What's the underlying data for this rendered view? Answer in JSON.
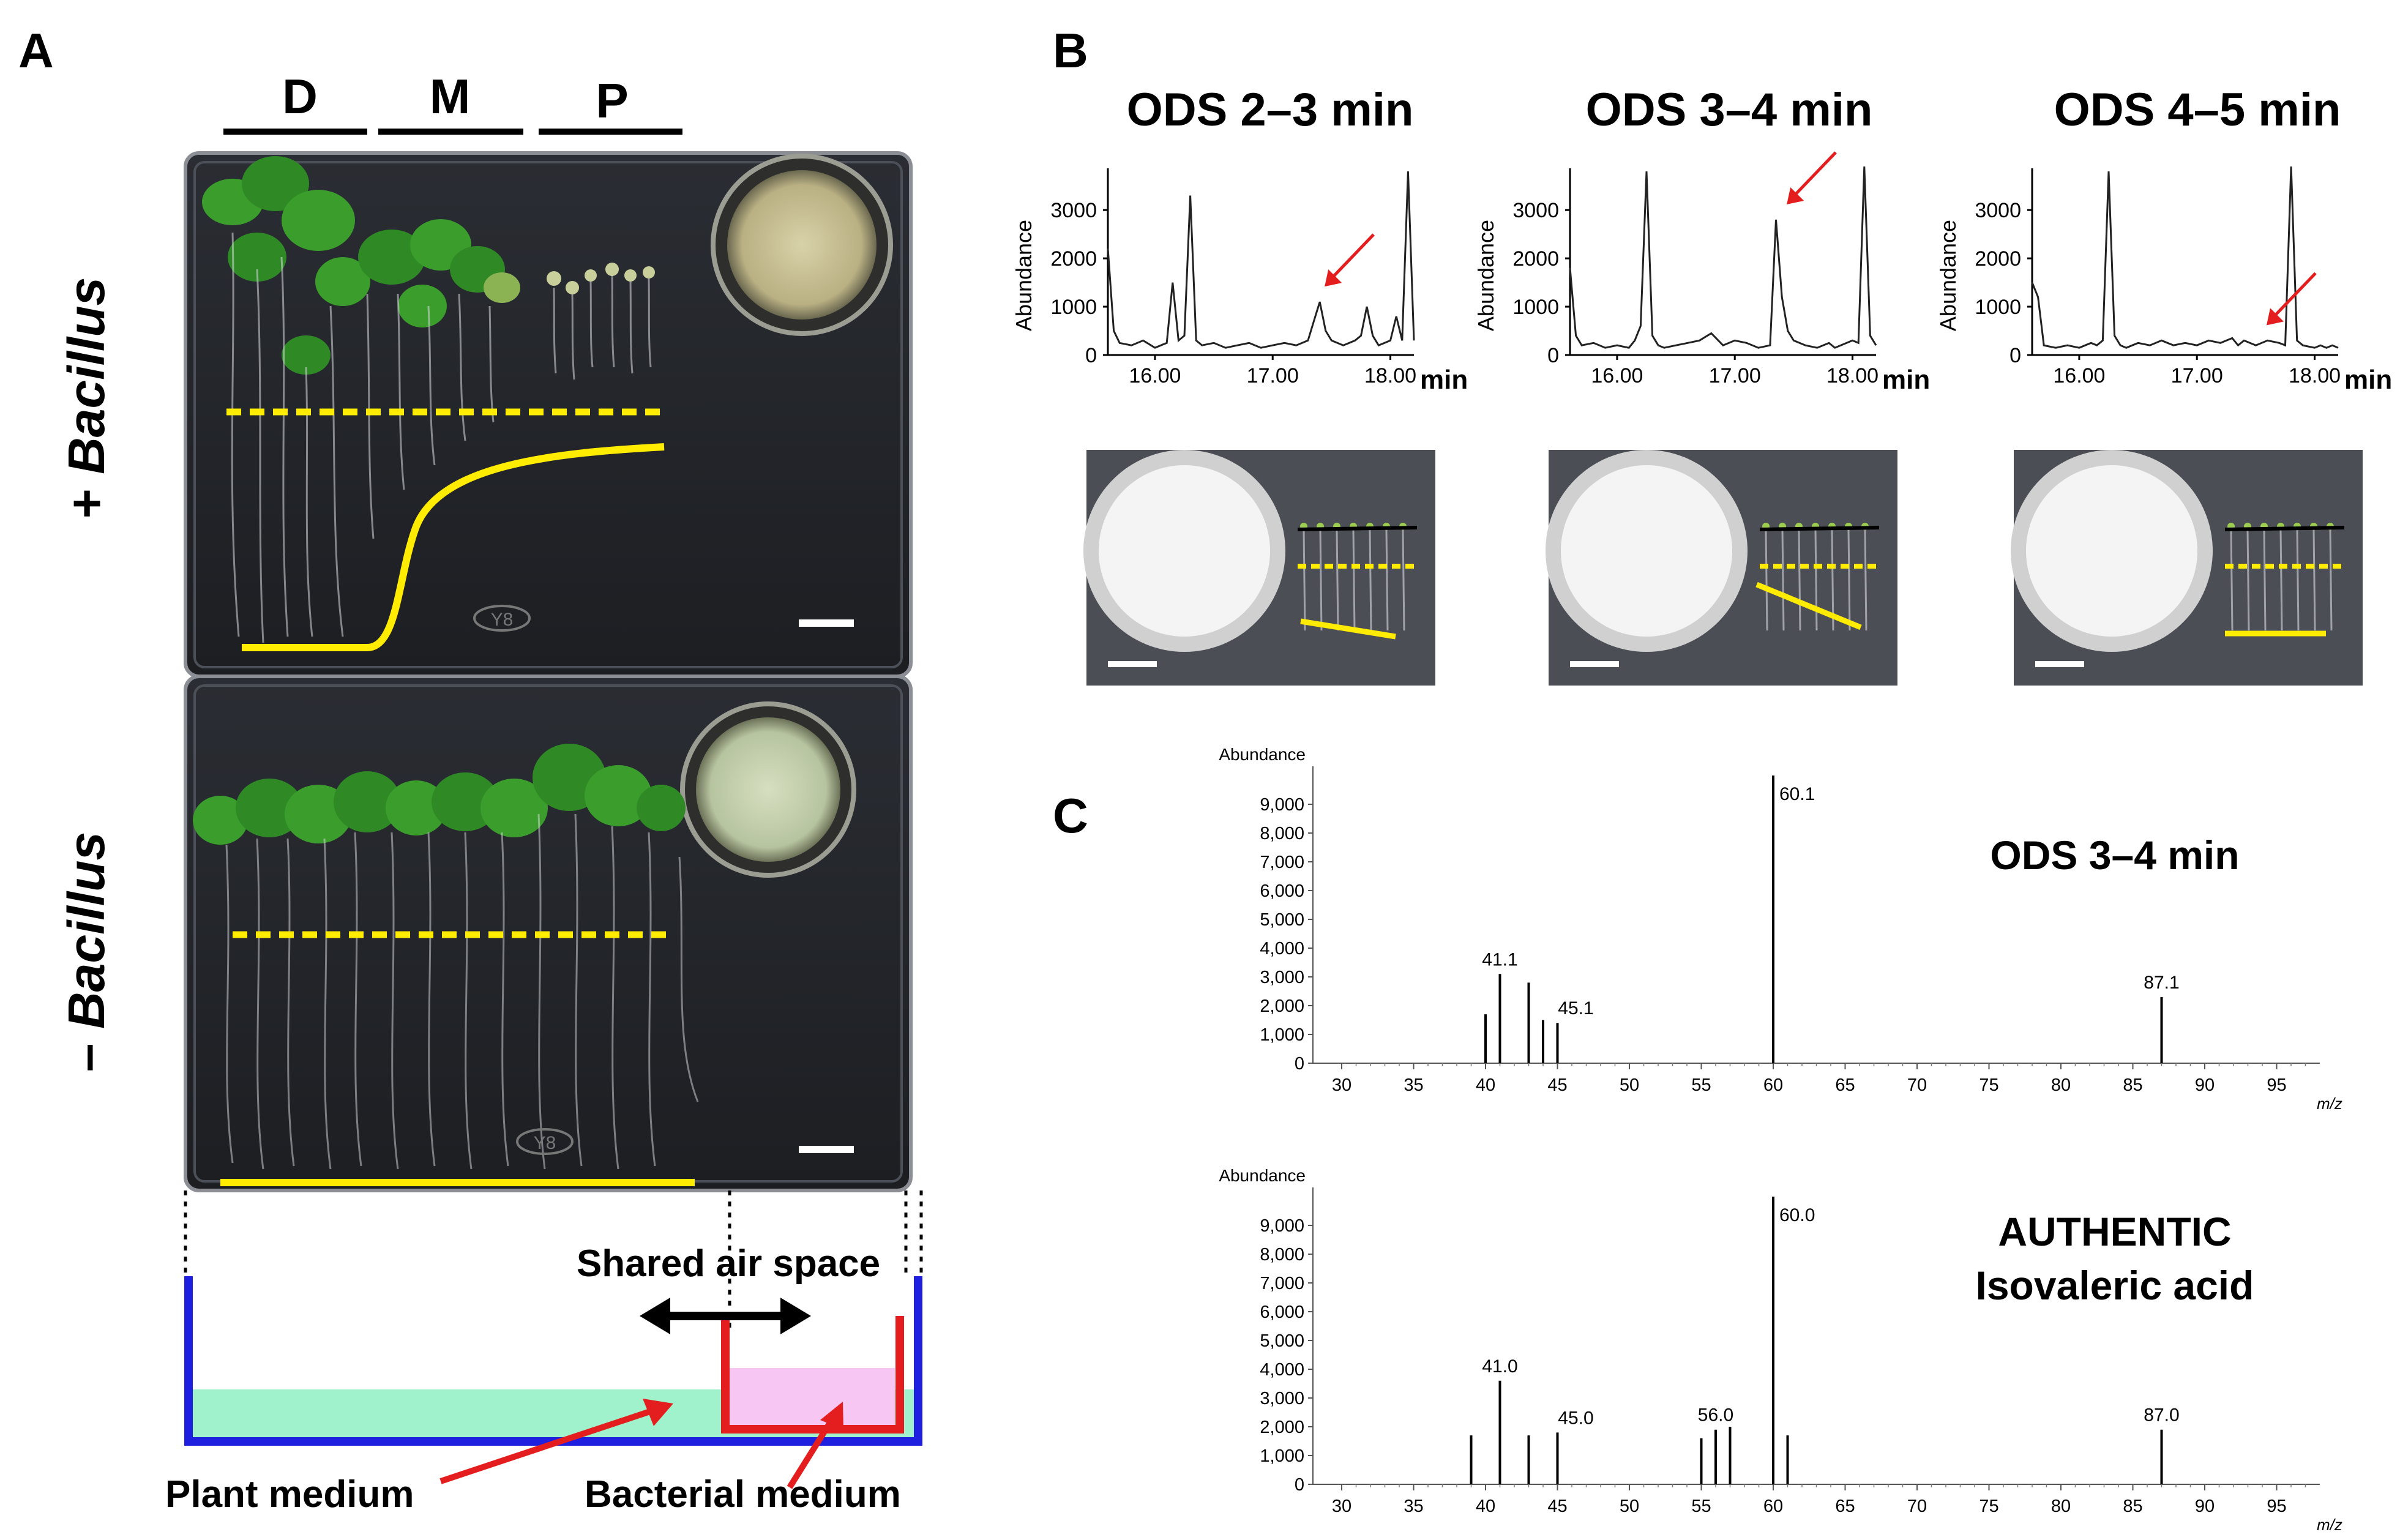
{
  "panel_a": {
    "letter": "A",
    "groups": [
      "D",
      "M",
      "P"
    ],
    "row_top": "+ Bacillus",
    "row_top_sign": "+ ",
    "row_top_word": "Bacillus",
    "row_bottom_sign": "– ",
    "row_bottom_word": "Bacillus",
    "plate_marks": [
      "Y8",
      "Y8"
    ],
    "schematic": {
      "shared_air_space": "Shared air space",
      "plant_medium": "Plant medium",
      "bacterial_medium": "Bacterial medium"
    },
    "colors": {
      "yellow": "#ffec00",
      "blue": "#1f1fe0",
      "red": "#e41e1e",
      "green_medium": "#9ff2cc",
      "pink_medium": "#f7c6f2"
    }
  },
  "panel_b": {
    "letter": "B",
    "chromatograms": [
      {
        "title": "ODS 2–3 min",
        "ylabel": "Abundance",
        "yticks": [
          "3000",
          "2000",
          "1000",
          "0"
        ],
        "xticks": [
          "16.00",
          "17.00",
          "18.00"
        ],
        "xunit": "min"
      },
      {
        "title": "ODS 3–4 min",
        "ylabel": "Abundance",
        "yticks": [
          "3000",
          "2000",
          "1000",
          "0"
        ],
        "xticks": [
          "16.00",
          "17.00",
          "18.00"
        ],
        "xunit": "min"
      },
      {
        "title": "ODS 4–5 min",
        "ylabel": "Abundance",
        "yticks": [
          "3000",
          "2000",
          "1000",
          "0"
        ],
        "xticks": [
          "16.00",
          "17.00",
          "18.00"
        ],
        "xunit": "min"
      }
    ]
  },
  "panel_c": {
    "letter": "C",
    "spectra": [
      {
        "title_lines": [
          "ODS 3–4 min"
        ],
        "ylabel": "Abundance",
        "xlabel": "m/z",
        "peak_labels": [
          "41.1",
          "45.1",
          "60.1",
          "87.1"
        ]
      },
      {
        "title_lines": [
          "AUTHENTIC",
          "Isovaleric acid"
        ],
        "ylabel": "Abundance",
        "xlabel": "m/z",
        "peak_labels": [
          "41.0",
          "45.0",
          "56.0",
          "60.0",
          "87.0"
        ]
      }
    ],
    "yticks": [
      "9,000",
      "8,000",
      "7,000",
      "6,000",
      "5,000",
      "4,000",
      "3,000",
      "2,000",
      "1,000",
      "0"
    ],
    "xticks": [
      "30",
      "35",
      "40",
      "45",
      "50",
      "55",
      "60",
      "65",
      "70",
      "75",
      "80",
      "85",
      "90",
      "95"
    ]
  },
  "chart_data": [
    {
      "type": "line",
      "title": "ODS 2–3 min",
      "xlabel": "min",
      "ylabel": "Abundance",
      "xlim": [
        15.6,
        18.2
      ],
      "ylim": [
        0,
        3800
      ],
      "x": [
        15.6,
        15.65,
        15.7,
        15.8,
        15.9,
        16.0,
        16.1,
        16.15,
        16.2,
        16.25,
        16.3,
        16.35,
        16.4,
        16.5,
        16.6,
        16.7,
        16.8,
        16.9,
        17.0,
        17.1,
        17.2,
        17.3,
        17.35,
        17.4,
        17.45,
        17.5,
        17.6,
        17.7,
        17.75,
        17.8,
        17.85,
        17.9,
        18.0,
        18.05,
        18.1,
        18.15,
        18.2
      ],
      "series": [
        {
          "values": [
            2200,
            500,
            250,
            200,
            300,
            150,
            250,
            1500,
            300,
            400,
            3300,
            300,
            200,
            250,
            150,
            200,
            250,
            150,
            200,
            250,
            200,
            300,
            700,
            1100,
            500,
            300,
            200,
            300,
            400,
            1000,
            400,
            200,
            300,
            800,
            300,
            3800,
            300
          ]
        }
      ]
    },
    {
      "type": "line",
      "title": "ODS 3–4 min",
      "xlabel": "min",
      "ylabel": "Abundance",
      "xlim": [
        15.6,
        18.2
      ],
      "ylim": [
        0,
        3800
      ],
      "x": [
        15.6,
        15.65,
        15.7,
        15.8,
        15.9,
        16.0,
        16.1,
        16.15,
        16.2,
        16.25,
        16.3,
        16.35,
        16.4,
        16.5,
        16.6,
        16.7,
        16.8,
        16.9,
        17.0,
        17.1,
        17.2,
        17.3,
        17.35,
        17.4,
        17.45,
        17.5,
        17.6,
        17.7,
        17.75,
        17.8,
        17.85,
        17.9,
        18.0,
        18.05,
        18.1,
        18.15,
        18.2
      ],
      "series": [
        {
          "values": [
            1800,
            400,
            200,
            250,
            150,
            200,
            150,
            300,
            600,
            3800,
            400,
            200,
            150,
            200,
            250,
            300,
            450,
            200,
            300,
            250,
            150,
            200,
            2800,
            1200,
            500,
            300,
            200,
            150,
            200,
            250,
            150,
            200,
            300,
            250,
            3900,
            400,
            200
          ]
        }
      ]
    },
    {
      "type": "line",
      "title": "ODS 4–5 min",
      "xlabel": "min",
      "ylabel": "Abundance",
      "xlim": [
        15.6,
        18.2
      ],
      "ylim": [
        0,
        3800
      ],
      "x": [
        15.6,
        15.65,
        15.7,
        15.8,
        15.9,
        16.0,
        16.1,
        16.15,
        16.2,
        16.25,
        16.3,
        16.35,
        16.4,
        16.5,
        16.6,
        16.7,
        16.8,
        16.9,
        17.0,
        17.1,
        17.2,
        17.3,
        17.35,
        17.4,
        17.45,
        17.5,
        17.6,
        17.7,
        17.75,
        17.8,
        17.85,
        17.9,
        18.0,
        18.05,
        18.1,
        18.15,
        18.2
      ],
      "series": [
        {
          "values": [
            1500,
            1200,
            200,
            150,
            200,
            150,
            250,
            200,
            300,
            3800,
            400,
            200,
            150,
            250,
            200,
            300,
            200,
            250,
            200,
            300,
            250,
            350,
            200,
            300,
            250,
            200,
            300,
            250,
            200,
            3900,
            300,
            200,
            150,
            200,
            150,
            200,
            150
          ]
        }
      ]
    },
    {
      "type": "bar",
      "title": "ODS 3–4 min",
      "xlabel": "m/z",
      "ylabel": "Abundance",
      "xlim": [
        28,
        98
      ],
      "ylim": [
        0,
        10000
      ],
      "x": [
        40,
        41,
        43,
        44,
        45,
        60,
        87
      ],
      "values": [
        1700,
        3100,
        2800,
        1500,
        1400,
        10000,
        2300
      ],
      "labels": [
        "",
        "41.1",
        "",
        "",
        "45.1",
        "60.1",
        "87.1"
      ]
    },
    {
      "type": "bar",
      "title": "AUTHENTIC Isovaleric acid",
      "xlabel": "m/z",
      "ylabel": "Abundance",
      "xlim": [
        28,
        98
      ],
      "ylim": [
        0,
        10000
      ],
      "x": [
        39,
        41,
        43,
        45,
        55,
        56,
        57,
        60,
        61,
        87
      ],
      "values": [
        1700,
        3600,
        1700,
        1800,
        1600,
        1900,
        2000,
        10000,
        1700,
        1900
      ],
      "labels": [
        "",
        "41.0",
        "",
        "45.0",
        "",
        "56.0",
        "",
        "60.0",
        "",
        "87.0"
      ]
    }
  ]
}
